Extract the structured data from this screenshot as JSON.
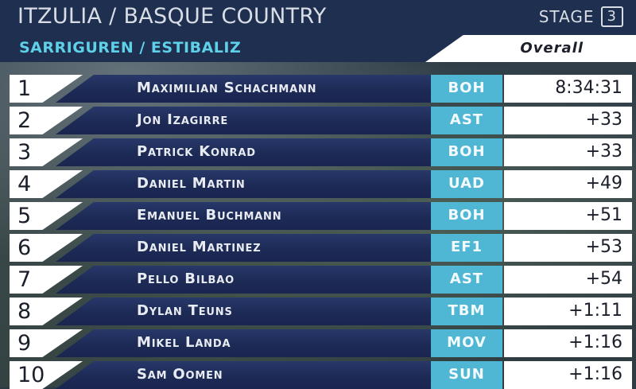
{
  "header": {
    "title": "ITZULIA / BASQUE COUNTRY",
    "stage_label": "STAGE",
    "stage_number": "3"
  },
  "subheader": {
    "route": "SARRIGUREN / ESTIBALIZ",
    "classification": "Overall"
  },
  "colors": {
    "header_bg": "#1e2f4f",
    "route_text": "#5ed1e8",
    "team_bg": "#4fb6d3",
    "rider_bg": "#1d2a55"
  },
  "standings": [
    {
      "pos": "1",
      "name": "Maximilian Schachmann",
      "team": "BOH",
      "time": "8:34:31"
    },
    {
      "pos": "2",
      "name": "Jon Izagirre",
      "team": "AST",
      "time": "+33"
    },
    {
      "pos": "3",
      "name": "Patrick Konrad",
      "team": "BOH",
      "time": "+33"
    },
    {
      "pos": "4",
      "name": "Daniel Martin",
      "team": "UAD",
      "time": "+49"
    },
    {
      "pos": "5",
      "name": "Emanuel Buchmann",
      "team": "BOH",
      "time": "+51"
    },
    {
      "pos": "6",
      "name": "Daniel Martinez",
      "team": "EF1",
      "time": "+53"
    },
    {
      "pos": "7",
      "name": "Pello Bilbao",
      "team": "AST",
      "time": "+54"
    },
    {
      "pos": "8",
      "name": "Dylan Teuns",
      "team": "TBM",
      "time": "+1:11"
    },
    {
      "pos": "9",
      "name": "Mikel Landa",
      "team": "MOV",
      "time": "+1:16"
    },
    {
      "pos": "10",
      "name": "Sam Oomen",
      "team": "SUN",
      "time": "+1:16"
    }
  ]
}
